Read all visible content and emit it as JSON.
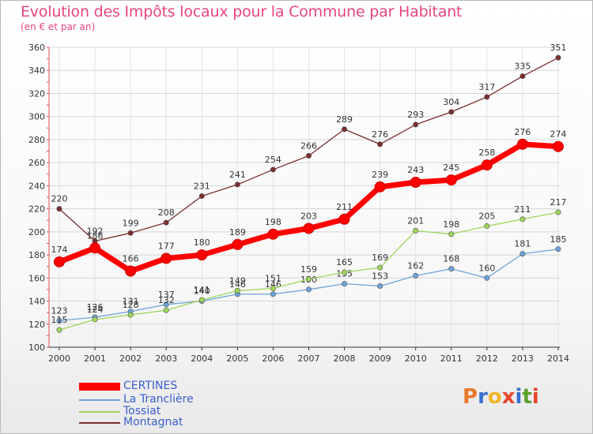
{
  "title": "Evolution des Impôts locaux pour la Commune par Habitant",
  "subtitle": "(en € et par an)",
  "logo": {
    "letters": [
      "P",
      "r",
      "o",
      "x",
      "i",
      "t",
      "i"
    ],
    "colors": [
      "#e8782b",
      "#3a6fd0",
      "#f1b52a",
      "#e8452c",
      "#3a6fd0",
      "#5aa02c",
      "#e8452c"
    ]
  },
  "chart_data": {
    "type": "line",
    "x": [
      "2000",
      "2001",
      "2002",
      "2003",
      "2004",
      "2005",
      "2006",
      "2007",
      "2008",
      "2009",
      "2010",
      "2011",
      "2012",
      "2013",
      "2014"
    ],
    "ylim": [
      100,
      360
    ],
    "yticks": [
      "100",
      "120",
      "140",
      "160",
      "180",
      "200",
      "220",
      "240",
      "260",
      "280",
      "300",
      "320",
      "340",
      "360"
    ],
    "grid": true,
    "legend": "bottom-left",
    "series": [
      {
        "name": "CERTINES",
        "color": "#ff0000",
        "values": [
          174,
          186,
          166,
          177,
          180,
          189,
          198,
          203,
          211,
          239,
          243,
          245,
          258,
          276,
          274
        ]
      },
      {
        "name": "La Tranclière",
        "color": "#6fa3d8",
        "values": [
          123,
          126,
          131,
          137,
          140,
          146,
          146,
          150,
          155,
          153,
          162,
          168,
          160,
          181,
          185
        ]
      },
      {
        "name": "Tossiat",
        "color": "#9ed65a",
        "values": [
          115,
          124,
          128,
          132,
          141,
          149,
          151,
          159,
          165,
          169,
          201,
          198,
          205,
          211,
          217
        ]
      },
      {
        "name": "Montagnat",
        "color": "#7a2e2e",
        "values": [
          220,
          192,
          199,
          208,
          231,
          241,
          254,
          266,
          289,
          276,
          293,
          304,
          317,
          335,
          351
        ]
      }
    ]
  }
}
